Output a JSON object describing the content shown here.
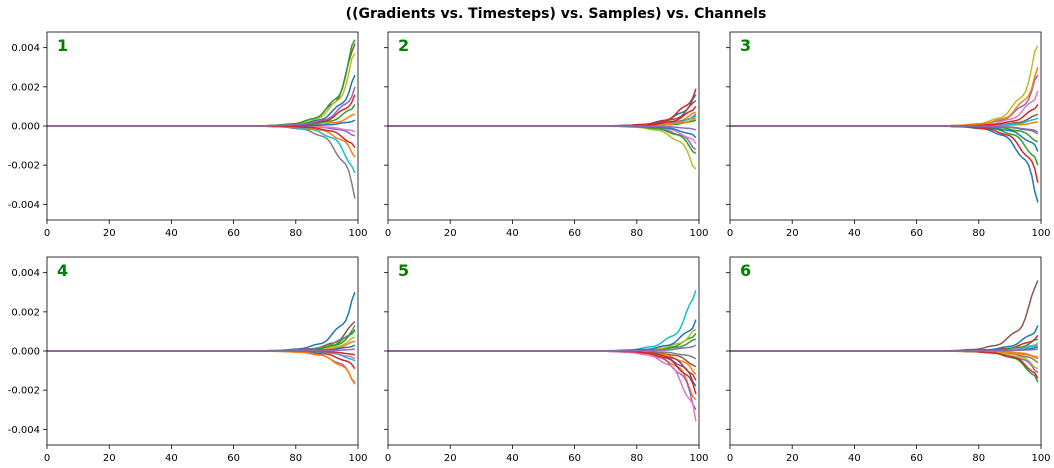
{
  "figure": {
    "title": "((Gradients vs. Timesteps) vs. Samples) vs. Channels"
  },
  "chart_data": {
    "type": "line",
    "layout": "2x3 grid, shared y axis",
    "xlim": [
      0,
      100
    ],
    "ylim": [
      -0.0048,
      0.0048
    ],
    "xticks": [
      0,
      20,
      40,
      60,
      80,
      100
    ],
    "xtick_labels": [
      "0",
      "20",
      "40",
      "60",
      "80",
      "100"
    ],
    "yticks": [
      -0.004,
      -0.002,
      0.0,
      0.002,
      0.004
    ],
    "ytick_labels": [
      "-0.004",
      "-0.002",
      "0.000",
      "0.002",
      "0.004"
    ],
    "grid": false,
    "legend": "none",
    "series_colors": [
      "#1f77b4",
      "#ff7f0e",
      "#2ca02c",
      "#d62728",
      "#9467bd",
      "#8c564b",
      "#e377c2",
      "#7f7f7f",
      "#bcbd22",
      "#17becf"
    ],
    "note": "Each panel: ~15 series over timesteps 0-99, essentially zero until ~75 then diverging; series endpoints (value at t=99) listed.",
    "panels": [
      {
        "label": "1",
        "endpoints": [
          0.0026,
          0.0006,
          0.0011,
          0.0016,
          -0.0005,
          0.0042,
          -0.0003,
          -0.0037,
          0.0037,
          -0.0024,
          0.0003,
          -0.0016,
          0.0044,
          -0.0011,
          0.002
        ]
      },
      {
        "label": "2",
        "endpoints": [
          0.0016,
          0.0007,
          0.0003,
          0.0019,
          -0.0012,
          0.0013,
          -0.0009,
          0.0006,
          -0.0022,
          0.0005,
          -0.0006,
          0.0004,
          -0.0014,
          0.001,
          -0.0002
        ]
      },
      {
        "label": "3",
        "endpoints": [
          -0.0039,
          0.0002,
          -0.002,
          -0.0029,
          0.0026,
          0.0006,
          0.0018,
          -0.0004,
          0.0041,
          0.0004,
          -0.0013,
          0.003,
          -0.0008,
          0.0011,
          -0.0003
        ]
      },
      {
        "label": "4",
        "endpoints": [
          0.003,
          0.0005,
          0.0011,
          -0.0009,
          -0.0016,
          0.0015,
          -0.0004,
          0.0013,
          0.0007,
          -0.0005,
          0.0003,
          -0.0017,
          0.001,
          -0.0002,
          0.0001
        ]
      },
      {
        "label": "5",
        "endpoints": [
          -0.0018,
          -0.0025,
          0.0009,
          -0.0022,
          -0.003,
          -0.0008,
          -0.0036,
          -0.0004,
          0.0011,
          0.0031,
          0.0016,
          -0.0012,
          0.0006,
          -0.0015,
          0.0003
        ]
      },
      {
        "label": "6",
        "endpoints": [
          0.0002,
          -0.0003,
          -0.0016,
          0.0008,
          -0.0011,
          0.0036,
          0.0004,
          -0.0006,
          -0.0009,
          0.0003,
          0.0013,
          -0.0004,
          0.0006,
          -0.0014,
          0.0001
        ]
      }
    ]
  }
}
